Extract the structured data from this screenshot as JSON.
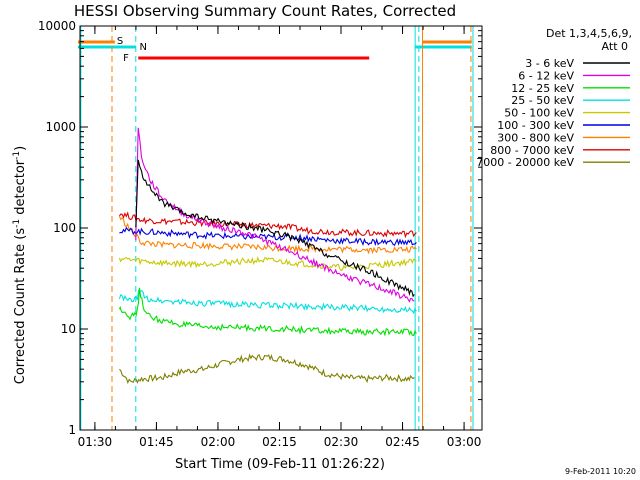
{
  "chart_data": {
    "type": "line",
    "title": "HESSI Observing Summary Count Rates, Corrected",
    "xlabel": "Start Time (09-Feb-11 01:26:22)",
    "ylabel_prefix": "Corrected Count Rate (s",
    "ylabel_sup1": "-1",
    "ylabel_mid": " detector",
    "ylabel_sup2": "-1",
    "ylabel_suffix": ")",
    "date_stamp": "9-Feb-2011 10:20",
    "x_unit": "minutes after 01:26:22",
    "xlim": [
      0,
      98
    ],
    "ylim": [
      1,
      10000
    ],
    "y_scale": "log",
    "x_ticks": [
      {
        "label": "01:30",
        "value": 3.63
      },
      {
        "label": "01:45",
        "value": 18.63
      },
      {
        "label": "02:00",
        "value": 33.63
      },
      {
        "label": "02:15",
        "value": 48.63
      },
      {
        "label": "02:30",
        "value": 63.63
      },
      {
        "label": "02:45",
        "value": 78.63
      },
      {
        "label": "03:00",
        "value": 93.63
      }
    ],
    "y_ticks": [
      {
        "label": "1",
        "value": 1
      },
      {
        "label": "10",
        "value": 10
      },
      {
        "label": "100",
        "value": 100
      },
      {
        "label": "1000",
        "value": 1000
      },
      {
        "label": "10000",
        "value": 10000
      }
    ],
    "legend": {
      "header1": "Det 1,3,4,5,6,9,",
      "header2": "Att 0",
      "placement": "right"
    },
    "series": [
      {
        "name": "3 - 6 keV",
        "color": "#000000",
        "points": [
          [
            13.6,
            100
          ],
          [
            14.2,
            450
          ],
          [
            15,
            350
          ],
          [
            17,
            250
          ],
          [
            20,
            180
          ],
          [
            25,
            140
          ],
          [
            30,
            125
          ],
          [
            35,
            115
          ],
          [
            40,
            105
          ],
          [
            45,
            95
          ],
          [
            50,
            85
          ],
          [
            55,
            70
          ],
          [
            60,
            55
          ],
          [
            65,
            45
          ],
          [
            70,
            38
          ],
          [
            75,
            30
          ],
          [
            80,
            24
          ],
          [
            81.5,
            22
          ]
        ]
      },
      {
        "name": "6 - 12 keV",
        "color": "#e000e0",
        "points": [
          [
            13.6,
            80
          ],
          [
            14.2,
            980
          ],
          [
            15,
            500
          ],
          [
            17,
            300
          ],
          [
            20,
            200
          ],
          [
            25,
            140
          ],
          [
            30,
            115
          ],
          [
            35,
            100
          ],
          [
            40,
            90
          ],
          [
            45,
            75
          ],
          [
            50,
            62
          ],
          [
            55,
            50
          ],
          [
            60,
            40
          ],
          [
            65,
            33
          ],
          [
            70,
            28
          ],
          [
            75,
            24
          ],
          [
            80,
            20
          ],
          [
            81.5,
            19
          ]
        ]
      },
      {
        "name": "12 - 25 keV",
        "color": "#00e000",
        "points": [
          [
            9.6,
            15.5
          ],
          [
            10,
            16
          ],
          [
            12.5,
            13
          ],
          [
            14,
            15
          ],
          [
            14.5,
            24
          ],
          [
            16,
            14
          ],
          [
            20,
            12
          ],
          [
            25,
            11
          ],
          [
            30,
            10.5
          ],
          [
            40,
            10.3
          ],
          [
            50,
            10
          ],
          [
            60,
            9.5
          ],
          [
            70,
            9.3
          ],
          [
            80,
            9.5
          ],
          [
            82,
            9
          ]
        ]
      },
      {
        "name": "25 - 50 keV",
        "color": "#00e0e0",
        "points": [
          [
            9.6,
            21
          ],
          [
            12,
            19
          ],
          [
            14,
            20
          ],
          [
            14.5,
            25
          ],
          [
            16,
            20
          ],
          [
            20,
            19
          ],
          [
            30,
            18
          ],
          [
            40,
            17.5
          ],
          [
            50,
            17
          ],
          [
            60,
            16.5
          ],
          [
            70,
            16
          ],
          [
            80,
            15.5
          ],
          [
            82,
            15
          ]
        ]
      },
      {
        "name": "50 - 100 keV",
        "color": "#c8c800",
        "points": [
          [
            9.6,
            50
          ],
          [
            15,
            47
          ],
          [
            20,
            45
          ],
          [
            30,
            44
          ],
          [
            40,
            47
          ],
          [
            45,
            48
          ],
          [
            50,
            46
          ],
          [
            60,
            42
          ],
          [
            65,
            40
          ],
          [
            70,
            42
          ],
          [
            75,
            44
          ],
          [
            82,
            47
          ]
        ]
      },
      {
        "name": "100 - 300 keV",
        "color": "#0000dd",
        "points": [
          [
            9.6,
            95
          ],
          [
            15,
            92
          ],
          [
            20,
            90
          ],
          [
            30,
            85
          ],
          [
            40,
            82
          ],
          [
            50,
            81
          ],
          [
            55,
            80
          ],
          [
            60,
            76
          ],
          [
            70,
            73
          ],
          [
            80,
            72
          ],
          [
            82,
            72
          ]
        ]
      },
      {
        "name": "300 - 800 keV",
        "color": "#ff8000",
        "points": [
          [
            9.6,
            130
          ],
          [
            15,
            72
          ],
          [
            20,
            68
          ],
          [
            30,
            67
          ],
          [
            40,
            65
          ],
          [
            50,
            63
          ],
          [
            60,
            62
          ],
          [
            70,
            61
          ],
          [
            80,
            61
          ],
          [
            82,
            62
          ]
        ]
      },
      {
        "name": "800 - 7000 keV",
        "color": "#dd0000",
        "points": [
          [
            9.6,
            140
          ],
          [
            15,
            120
          ],
          [
            20,
            117
          ],
          [
            30,
            112
          ],
          [
            40,
            107
          ],
          [
            50,
            104
          ],
          [
            55,
            95
          ],
          [
            60,
            92
          ],
          [
            70,
            89
          ],
          [
            80,
            88
          ],
          [
            82,
            90
          ]
        ]
      },
      {
        "name": "7000 - 20000 keV",
        "color": "#808000",
        "points": [
          [
            9.6,
            4
          ],
          [
            12,
            3
          ],
          [
            15,
            3.2
          ],
          [
            20,
            3.3
          ],
          [
            25,
            3.8
          ],
          [
            30,
            4.0
          ],
          [
            35,
            4.6
          ],
          [
            40,
            5.1
          ],
          [
            45,
            5.3
          ],
          [
            50,
            5.0
          ],
          [
            55,
            4.4
          ],
          [
            60,
            3.6
          ],
          [
            65,
            3.3
          ],
          [
            70,
            3.2
          ],
          [
            75,
            3.3
          ],
          [
            80,
            3.2
          ],
          [
            81.5,
            3.3
          ]
        ]
      }
    ],
    "flag_markers": {
      "S": "S",
      "N": "N",
      "F": "F"
    },
    "colors": {
      "flare_bar": "#ff0000",
      "saa": "#ff7f00",
      "night": "#00e0e0"
    }
  }
}
